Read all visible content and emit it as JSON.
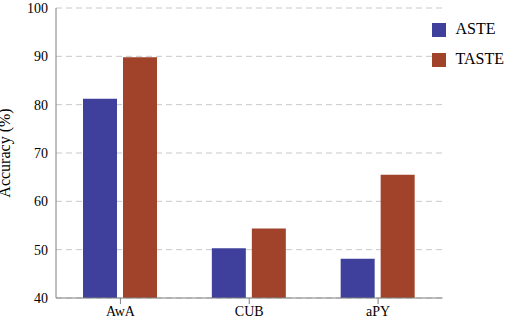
{
  "chart_data": {
    "type": "bar",
    "categories": [
      "AwA",
      "CUB",
      "aPY"
    ],
    "series": [
      {
        "name": "ASTE",
        "color": "#3f3f9c",
        "values": [
          81.2,
          50.3,
          48.1
        ]
      },
      {
        "name": "TASTE",
        "color": "#a0432a",
        "values": [
          89.8,
          54.4,
          65.5
        ]
      }
    ],
    "y_label": "Accuracy (%)",
    "ylim": [
      40,
      100
    ],
    "yticks": [
      40,
      50,
      60,
      70,
      80,
      90,
      100
    ],
    "grid": true,
    "legend": "top-right"
  }
}
